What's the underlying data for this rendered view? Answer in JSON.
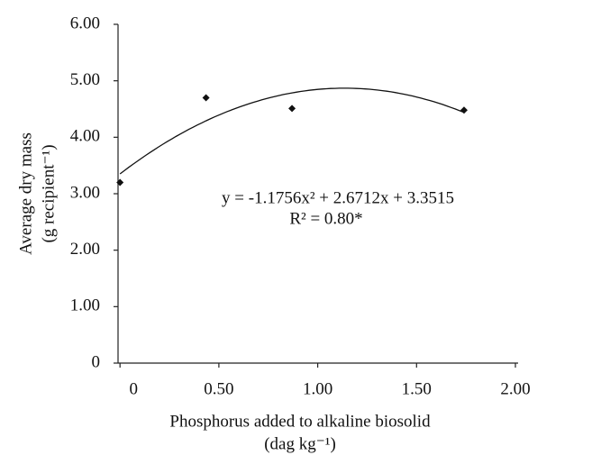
{
  "chart_data": {
    "type": "scatter",
    "x_label": [
      "Phosphorus added to alkaline biosolid",
      "(dag kg⁻¹)"
    ],
    "y_label": [
      "Average dry mass",
      "(g recipient⁻¹)"
    ],
    "series": [
      {
        "color": "#111111",
        "x": [
          0,
          0.435,
          0.87,
          1.74
        ],
        "values": [
          3.2,
          4.7,
          4.51,
          4.48
        ]
      }
    ],
    "trendline": {
      "coefficients": [
        -1.1756,
        2.6712,
        3.3515
      ],
      "label": "y = -1.1756x² + 2.6712x + 3.3515",
      "r2_label": "R² = 0.80*"
    },
    "xlim": [
      -0.01,
      2.0
    ],
    "xticks": [
      {
        "value": 0,
        "label": "0"
      },
      {
        "value": 0.5,
        "label": "0.50"
      },
      {
        "value": 1.0,
        "label": "1.00"
      },
      {
        "value": 1.5,
        "label": "1.50"
      },
      {
        "value": 2.0,
        "label": "2.00"
      }
    ],
    "ylim": [
      0,
      6.0
    ],
    "yticks": [
      {
        "value": 0,
        "label": "0"
      },
      {
        "value": 1.0,
        "label": "1.00"
      },
      {
        "value": 2.0,
        "label": "2.00"
      },
      {
        "value": 3.0,
        "label": "3.00"
      },
      {
        "value": 4.0,
        "label": "4.00"
      },
      {
        "value": 5.0,
        "label": "5.00"
      },
      {
        "value": 6.0,
        "label": "6.00"
      }
    ],
    "grid": false
  }
}
